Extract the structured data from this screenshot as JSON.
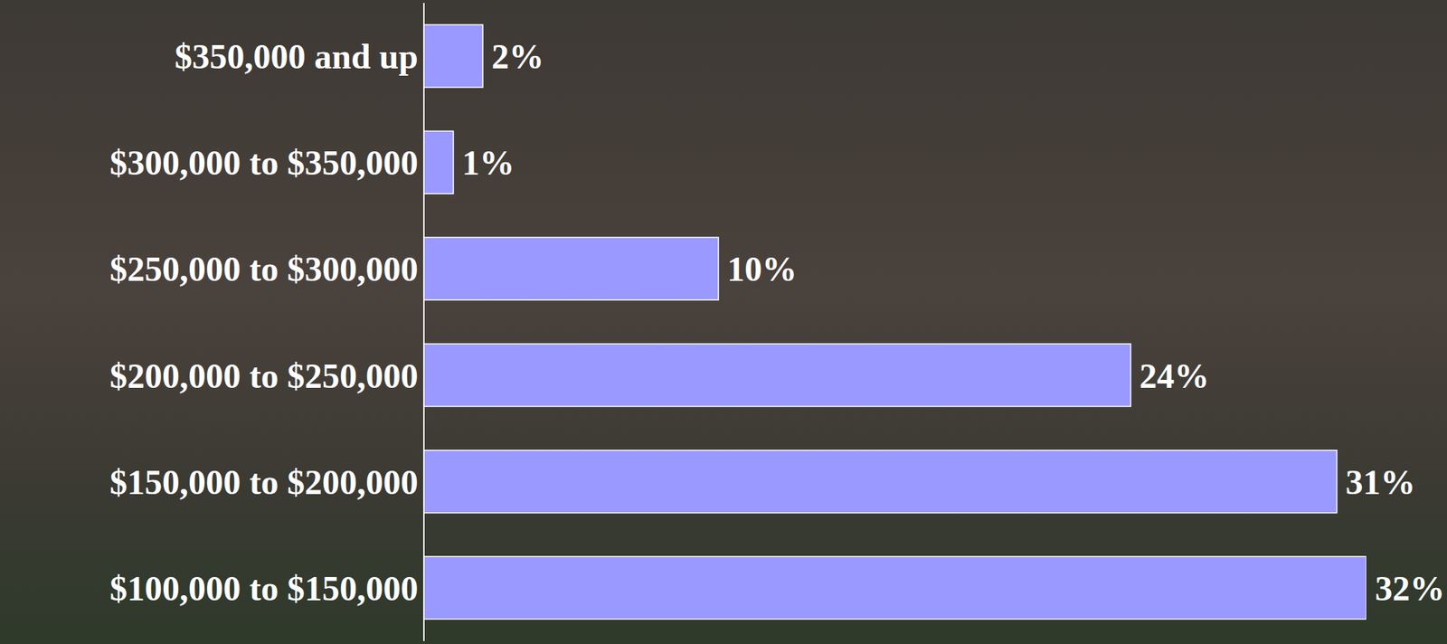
{
  "chart_data": {
    "type": "bar",
    "orientation": "horizontal",
    "categories": [
      "$350,000 and up",
      "$300,000 to $350,000",
      "$250,000 to $300,000",
      "$200,000 to $250,000",
      "$150,000 to $200,000",
      "$100,000 to $150,000"
    ],
    "values": [
      2,
      1,
      10,
      24,
      31,
      32
    ],
    "value_labels": [
      "2%",
      "1%",
      "10%",
      "24%",
      "31%",
      "32%"
    ],
    "color": "#9999ff",
    "xlim": [
      0,
      32
    ],
    "data_labels": true,
    "tick_labels": "y",
    "grid": false
  }
}
